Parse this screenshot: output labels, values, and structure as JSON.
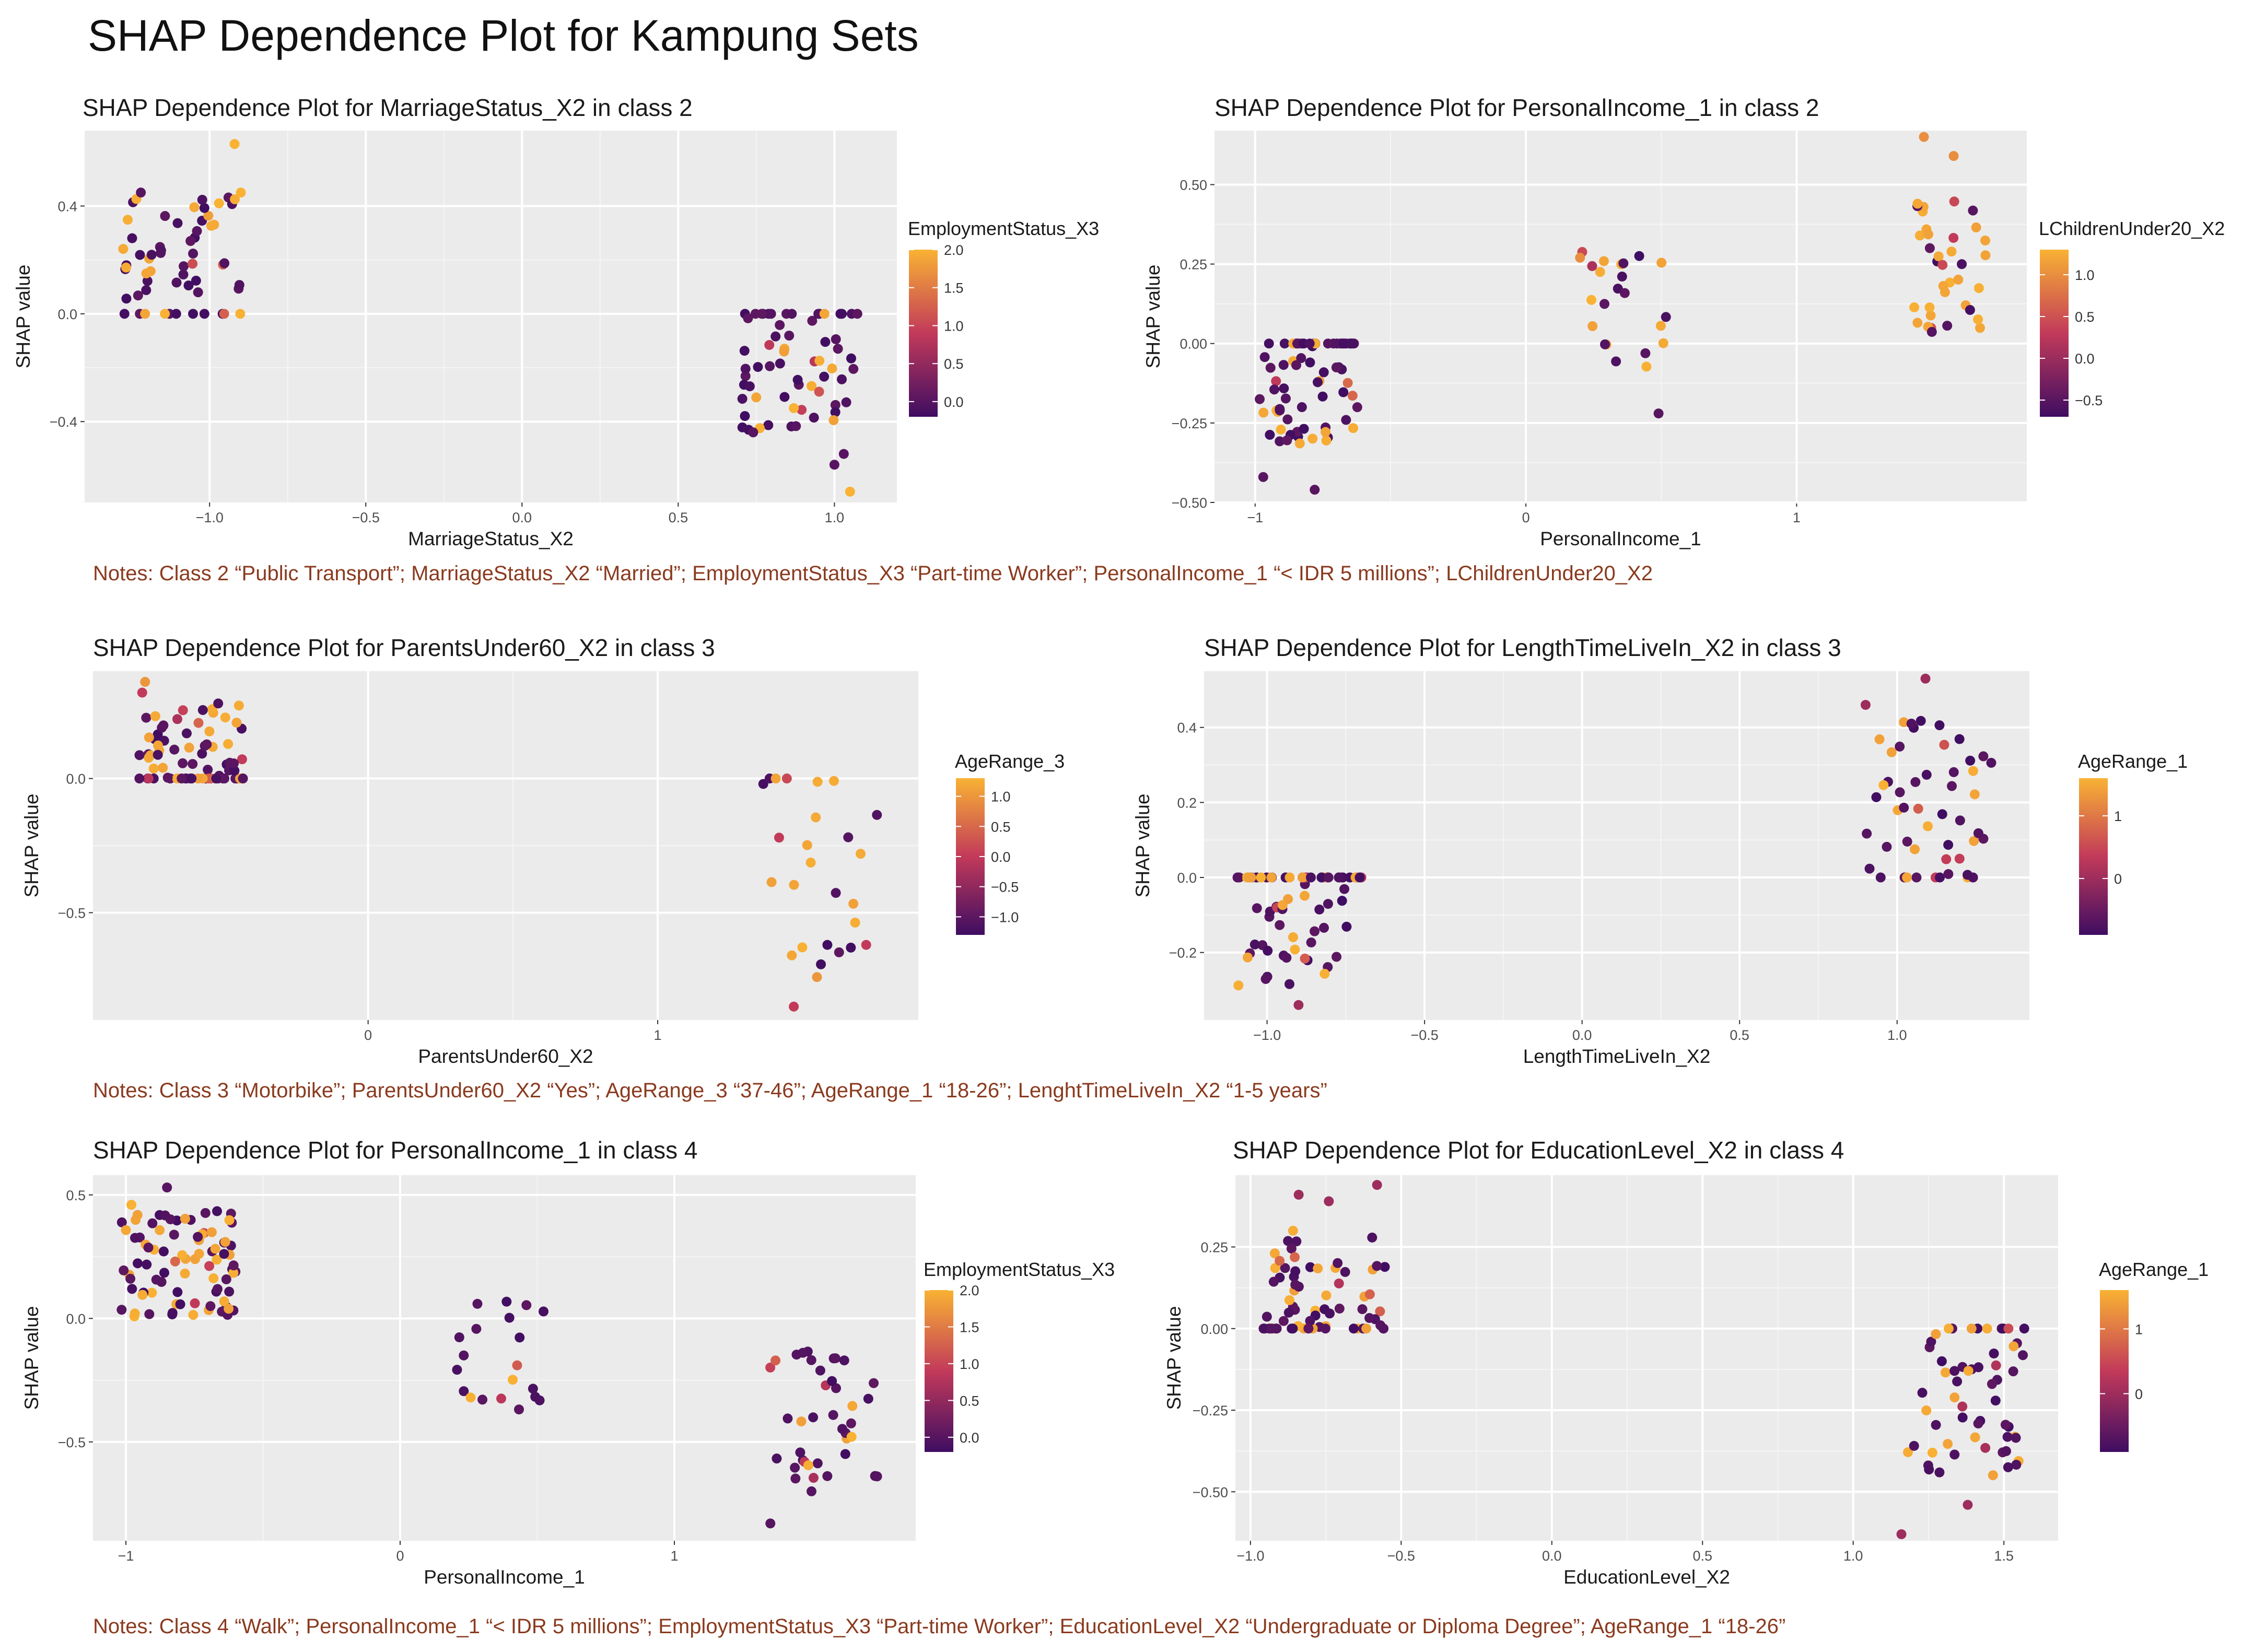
{
  "page": {
    "title": "SHAP Dependence Plot for Kampung Sets",
    "notes": [
      "Notes: Class 2 “Public Transport”; MarriageStatus_X2 “Married”; EmploymentStatus_X3 “Part-time Worker”; PersonalIncome_1 “< IDR 5 millions”; LChildrenUnder20_X2",
      "Notes: Class 3 “Motorbike”; ParentsUnder60_X2 “Yes”; AgeRange_3 “37-46”; AgeRange_1 “18-26”; LenghtTimeLiveIn_X2 “1-5 years”",
      "Notes: Class 4 “Walk”; PersonalIncome_1 “< IDR 5 millions”; EmploymentStatus_X3 “Part-time Worker”; EducationLevel_X2 “Undergraduate or Diploma Degree”; AgeRange_1 “18-26”"
    ]
  },
  "colors": {
    "panel_bg": "#ebebeb",
    "grid": "#ffffff",
    "low": "#3f0d62",
    "mid": "#c23a5a",
    "high": "#f9b233",
    "note_text": "#8a3a1e"
  },
  "chart_data": [
    {
      "type": "scatter",
      "title": "SHAP Dependence Plot for MarriageStatus_X2 in class 2",
      "xlabel": "MarriageStatus_X2",
      "ylabel": "SHAP value",
      "xlim": [
        -1.4,
        1.2
      ],
      "ylim": [
        -0.7,
        0.68
      ],
      "xticks": [
        -1.0,
        -0.5,
        0.0,
        0.5,
        1.0
      ],
      "xtick_labels": [
        "-1.0",
        "-0.5",
        "0.0",
        "0.5",
        "1.0"
      ],
      "yticks": [
        -0.4,
        0.0,
        0.4
      ],
      "ytick_labels": [
        "-0.4",
        "0.0",
        "0.4"
      ],
      "legend": {
        "title": "EmploymentStatus_X3",
        "ticks": [
          2.0,
          1.5,
          1.0,
          0.5,
          0.0
        ],
        "tick_labels": [
          "2.0",
          "1.5",
          "1.0",
          "0.5",
          "0.0"
        ],
        "range": [
          -0.2,
          2.0
        ]
      },
      "groups": [
        {
          "xmin": -1.28,
          "xmax": -0.9,
          "n": 58,
          "ymin": 0.0,
          "ymax": 0.45,
          "zero_frac": 0.22,
          "high_frac": 0.22,
          "seed": 11,
          "extra": [
            [
              -0.92,
              0.63,
              2.0
            ],
            [
              -0.9,
              0.45,
              2.0
            ],
            [
              -1.22,
              0.45,
              0.0
            ],
            [
              -0.97,
              0.41,
              2.0
            ]
          ]
        },
        {
          "xmin": 0.7,
          "xmax": 1.08,
          "n": 62,
          "ymin": -0.45,
          "ymax": 0.0,
          "zero_frac": 0.25,
          "high_frac": 0.12,
          "seed": 23,
          "extra": [
            [
              0.74,
              -0.44,
              0.0
            ],
            [
              1.0,
              -0.56,
              0.0
            ],
            [
              1.05,
              -0.66,
              2.0
            ],
            [
              0.87,
              -0.35,
              2.0
            ],
            [
              1.03,
              -0.52,
              0.0
            ]
          ]
        }
      ]
    },
    {
      "type": "scatter",
      "title": "SHAP Dependence Plot for PersonalIncome_1 in class 2",
      "xlabel": "PersonalIncome_1",
      "ylabel": "SHAP value",
      "xlim": [
        -1.15,
        1.85
      ],
      "ylim": [
        -0.5,
        0.67
      ],
      "xticks": [
        -1,
        0,
        1
      ],
      "xtick_labels": [
        "-1",
        "0",
        "1"
      ],
      "yticks": [
        -0.5,
        -0.25,
        0.0,
        0.25,
        0.5
      ],
      "ytick_labels": [
        "-0.50",
        "-0.25",
        "0.00",
        "0.25",
        "0.50"
      ],
      "legend": {
        "title": "LChildrenUnder20_X2",
        "ticks": [
          1.0,
          0.5,
          0.0,
          -0.5
        ],
        "tick_labels": [
          "1.0",
          "0.5",
          "0.0",
          "-0.5"
        ],
        "range": [
          -0.7,
          1.3
        ]
      },
      "groups": [
        {
          "xmin": -1.0,
          "xmax": -0.62,
          "n": 72,
          "ymin": -0.32,
          "ymax": 0.0,
          "zero_frac": 0.32,
          "high_frac": 0.14,
          "seed": 37,
          "extra": [
            [
              -0.97,
              -0.42,
              -0.5
            ],
            [
              -0.78,
              -0.46,
              -0.5
            ]
          ]
        },
        {
          "xmin": 0.2,
          "xmax": 0.55,
          "n": 22,
          "ymin": -0.08,
          "ymax": 0.3,
          "zero_frac": 0.0,
          "high_frac": 0.45,
          "seed": 41,
          "extra": [
            [
              0.49,
              -0.22,
              -0.5
            ],
            [
              0.2,
              0.27,
              1.0
            ]
          ]
        },
        {
          "xmin": 1.42,
          "xmax": 1.72,
          "n": 36,
          "ymin": 0.0,
          "ymax": 0.45,
          "zero_frac": 0.0,
          "high_frac": 0.55,
          "seed": 53,
          "extra": [
            [
              1.47,
              0.65,
              1.0
            ],
            [
              1.58,
              0.59,
              1.0
            ]
          ]
        }
      ]
    },
    {
      "type": "scatter",
      "title": "SHAP Dependence Plot for ParentsUnder60_X2 in class 3",
      "xlabel": "ParentsUnder60_X2",
      "ylabel": "SHAP value",
      "xlim": [
        -0.95,
        1.9
      ],
      "ylim": [
        -0.9,
        0.4
      ],
      "xticks": [
        0,
        1
      ],
      "xtick_labels": [
        "0",
        "1"
      ],
      "yticks": [
        -0.5,
        0.0
      ],
      "ytick_labels": [
        "-0.5",
        "0.0"
      ],
      "legend": {
        "title": "AgeRange_3",
        "ticks": [
          1.0,
          0.5,
          0.0,
          -0.5,
          -1.0
        ],
        "tick_labels": [
          "1.0",
          "0.5",
          "0.0",
          "-0.5",
          "-1.0"
        ],
        "range": [
          -1.3,
          1.3
        ]
      },
      "groups": [
        {
          "xmin": -0.83,
          "xmax": -0.43,
          "n": 78,
          "ymin": 0.0,
          "ymax": 0.28,
          "zero_frac": 0.42,
          "high_frac": 0.35,
          "seed": 61,
          "extra": [
            [
              -0.77,
              0.36,
              1.0
            ],
            [
              -0.78,
              0.32,
              0.0
            ]
          ]
        },
        {
          "xmin": 1.36,
          "xmax": 1.78,
          "n": 24,
          "ymin": -0.7,
          "ymax": 0.0,
          "zero_frac": 0.2,
          "high_frac": 0.38,
          "seed": 71,
          "extra": [
            [
              1.47,
              -0.85,
              0.0
            ],
            [
              1.55,
              -0.74,
              1.0
            ],
            [
              1.72,
              -0.62,
              0.0
            ]
          ]
        }
      ]
    },
    {
      "type": "scatter",
      "title": "SHAP Dependence Plot for LengthTimeLiveIn_X2 in class 3",
      "xlabel": "LengthTimeLiveIn_X2",
      "ylabel": "SHAP value",
      "xlim": [
        -1.2,
        1.42
      ],
      "ylim": [
        -0.38,
        0.55
      ],
      "xticks": [
        -1.0,
        -0.5,
        0.0,
        0.5,
        1.0
      ],
      "xtick_labels": [
        "-1.0",
        "-0.5",
        "0.0",
        "0.5",
        "1.0"
      ],
      "yticks": [
        -0.2,
        0.0,
        0.2,
        0.4
      ],
      "ytick_labels": [
        "-0.2",
        "0.0",
        "0.2",
        "0.4"
      ],
      "legend": {
        "title": "AgeRange_1",
        "ticks": [
          1,
          0
        ],
        "tick_labels": [
          "1",
          "0"
        ],
        "range": [
          -0.9,
          1.6
        ]
      },
      "groups": [
        {
          "xmin": -1.1,
          "xmax": -0.7,
          "n": 70,
          "ymin": -0.3,
          "ymax": 0.0,
          "zero_frac": 0.35,
          "high_frac": 0.2,
          "seed": 83,
          "extra": [
            [
              -0.9,
              -0.34,
              0.0
            ]
          ]
        },
        {
          "xmin": 0.9,
          "xmax": 1.3,
          "n": 50,
          "ymin": 0.0,
          "ymax": 0.46,
          "zero_frac": 0.2,
          "high_frac": 0.28,
          "seed": 89,
          "extra": [
            [
              1.09,
              0.53,
              0.0
            ],
            [
              0.9,
              0.46,
              0.0
            ]
          ]
        }
      ]
    },
    {
      "type": "scatter",
      "title": "SHAP Dependence Plot for PersonalIncome_1 in class 4",
      "xlabel": "PersonalIncome_1",
      "ylabel": "SHAP value",
      "xlim": [
        -1.12,
        1.88
      ],
      "ylim": [
        -0.9,
        0.58
      ],
      "xticks": [
        -1,
        0,
        1
      ],
      "xtick_labels": [
        "-1",
        "0",
        "1"
      ],
      "yticks": [
        -0.5,
        0.0,
        0.5
      ],
      "ytick_labels": [
        "-0.5",
        "0.0",
        "0.5"
      ],
      "legend": {
        "title": "EmploymentStatus_X3",
        "ticks": [
          2.0,
          1.5,
          1.0,
          0.5,
          0.0
        ],
        "tick_labels": [
          "2.0",
          "1.5",
          "1.0",
          "0.5",
          "0.0"
        ],
        "range": [
          -0.2,
          2.0
        ]
      },
      "groups": [
        {
          "xmin": -1.02,
          "xmax": -0.6,
          "n": 85,
          "ymin": 0.0,
          "ymax": 0.44,
          "zero_frac": 0.0,
          "high_frac": 0.3,
          "seed": 97,
          "extra": [
            [
              -0.85,
              0.53,
              0.0
            ],
            [
              -0.98,
              0.46,
              2.0
            ]
          ]
        },
        {
          "xmin": 0.18,
          "xmax": 0.55,
          "n": 20,
          "ymin": -0.37,
          "ymax": 0.07,
          "zero_frac": 0.0,
          "high_frac": 0.08,
          "seed": 101,
          "extra": []
        },
        {
          "xmin": 1.32,
          "xmax": 1.75,
          "n": 38,
          "ymin": -0.65,
          "ymax": -0.1,
          "zero_frac": 0.0,
          "high_frac": 0.1,
          "seed": 107,
          "extra": [
            [
              1.35,
              -0.83,
              0.0
            ],
            [
              1.5,
              -0.7,
              0.0
            ]
          ]
        }
      ]
    },
    {
      "type": "scatter",
      "title": "SHAP Dependence Plot for EducationLevel_X2 in class 4",
      "xlabel": "EducationLevel_X2",
      "ylabel": "SHAP value",
      "xlim": [
        -1.05,
        1.68
      ],
      "ylim": [
        -0.65,
        0.47
      ],
      "xticks": [
        -1.0,
        -0.5,
        0.0,
        0.5,
        1.0,
        1.5
      ],
      "xtick_labels": [
        "-1.0",
        "-0.5",
        "0.0",
        "0.5",
        "1.0",
        "1.5"
      ],
      "yticks": [
        -0.5,
        -0.25,
        0.0,
        0.25
      ],
      "ytick_labels": [
        "-0.50",
        "-0.25",
        "0.00",
        "0.25"
      ],
      "legend": {
        "title": "AgeRange_1",
        "ticks": [
          1,
          0
        ],
        "tick_labels": [
          "1",
          "0"
        ],
        "range": [
          -0.9,
          1.6
        ]
      },
      "groups": [
        {
          "xmin": -0.97,
          "xmax": -0.55,
          "n": 70,
          "ymin": 0.0,
          "ymax": 0.3,
          "zero_frac": 0.32,
          "high_frac": 0.3,
          "seed": 113,
          "extra": [
            [
              -0.58,
              0.44,
              0.0
            ],
            [
              -0.84,
              0.41,
              0.0
            ],
            [
              -0.74,
              0.39,
              0.0
            ]
          ]
        },
        {
          "xmin": 1.18,
          "xmax": 1.58,
          "n": 58,
          "ymin": -0.45,
          "ymax": 0.0,
          "zero_frac": 0.2,
          "high_frac": 0.25,
          "seed": 127,
          "extra": [
            [
              1.16,
              -0.63,
              0.0
            ],
            [
              1.38,
              -0.54,
              0.0
            ]
          ]
        }
      ]
    }
  ]
}
